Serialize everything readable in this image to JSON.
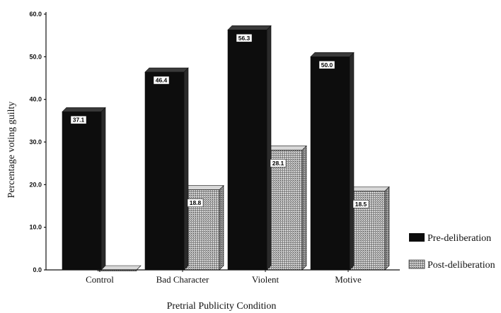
{
  "chart_data": {
    "type": "bar",
    "title": "",
    "xlabel": "Pretrial Publicity Condition",
    "ylabel": "Percentage voting guilty",
    "ylim": [
      0,
      60
    ],
    "yticks": [
      "0.0",
      "10.0",
      "20.0",
      "30.0",
      "40.0",
      "50.0",
      "60.0"
    ],
    "categories": [
      "Control",
      "Bad Character",
      "Violent",
      "Motive"
    ],
    "series": [
      {
        "name": "Pre-deliberation",
        "values": [
          37.1,
          46.4,
          56.3,
          50.0
        ],
        "labels": [
          "37.1",
          "46.4",
          "56.3",
          "50.0"
        ],
        "color": "#0d0d0d"
      },
      {
        "name": "Post-deliberation",
        "values": [
          0.0,
          18.8,
          28.1,
          18.5
        ],
        "labels": [
          "",
          "18.8",
          "28.1",
          "18.5"
        ],
        "color": "#9a9a9a"
      }
    ],
    "legend_position": "right",
    "grid": false
  }
}
